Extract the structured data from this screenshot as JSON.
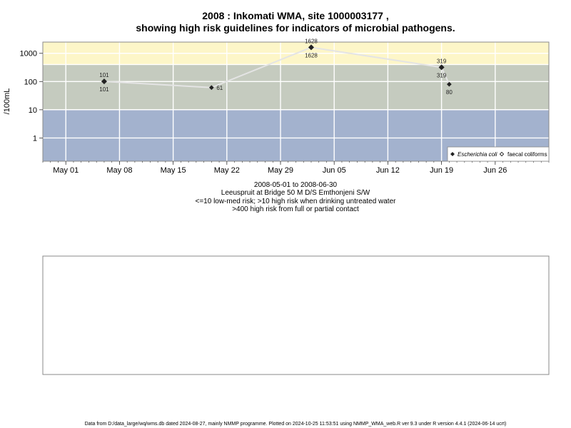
{
  "chart_data": {
    "type": "scatter",
    "title_lines": [
      "2008 : Inkomati WMA, site 1000003177 ,",
      "showing high risk guidelines for indicators of microbial pathogens."
    ],
    "ylabel": "/100mL",
    "y_scale": "log",
    "ylim": [
      0.15,
      2500
    ],
    "y_ticks": [
      1,
      10,
      100,
      1000
    ],
    "y_tick_labels": [
      "1",
      "10",
      "100",
      "1000"
    ],
    "xlim": [
      "2008-04-28",
      "2008-07-03"
    ],
    "x_ticks": [
      "2008-05-01",
      "2008-05-08",
      "2008-05-15",
      "2008-05-22",
      "2008-05-29",
      "2008-06-05",
      "2008-06-12",
      "2008-06-19",
      "2008-06-26"
    ],
    "x_tick_labels": [
      "May 01",
      "May 08",
      "May 15",
      "May 22",
      "May 29",
      "Jun 05",
      "Jun 12",
      "Jun 19",
      "Jun 26"
    ],
    "risk_bands": [
      {
        "from": 0.15,
        "to": 10,
        "color": "#a3b2ce"
      },
      {
        "from": 10,
        "to": 400,
        "color": "#c5cbbf"
      },
      {
        "from": 400,
        "to": 2500,
        "color": "#fdf6c8"
      }
    ],
    "band_lines": [
      10,
      400
    ],
    "series": [
      {
        "name": "Escherichia coli",
        "marker": "filled-diamond",
        "points": [
          {
            "x": "2008-05-06",
            "y": 101,
            "label": "101"
          },
          {
            "x": "2008-05-20",
            "y": 61,
            "label": "61"
          },
          {
            "x": "2008-06-02",
            "y": 1628,
            "label": "1628"
          },
          {
            "x": "2008-06-19",
            "y": 319,
            "label": "319"
          },
          {
            "x": "2008-06-20",
            "y": 80,
            "label": "80"
          }
        ]
      },
      {
        "name": "faecal coliforms",
        "marker": "open-diamond",
        "points": [
          {
            "x": "2008-05-06",
            "y": 101,
            "label": "101"
          },
          {
            "x": "2008-06-02",
            "y": 1628,
            "label": "1628"
          },
          {
            "x": "2008-06-19",
            "y": 319,
            "label": "319"
          }
        ]
      }
    ],
    "legend_position": "bottom-right",
    "grid": true,
    "subtitle_lines": [
      "2008-05-01 to 2008-06-30",
      "Leeuspruit at Bridge 50 M D/S Emthonjeni S/W",
      "<=10 low-med risk; >10 high risk when drinking untreated water",
      ">400 high risk from full or partial contact"
    ]
  },
  "footer": "Data from D:/data_large/wq/wms.db dated 2024-08-27, mainly NMMP programme. Plotted on 2024-10-25 11:53:51 using NMMP_WMA_web.R ver 9.3 under R version 4.4.1 (2024-06-14 ucrt)"
}
